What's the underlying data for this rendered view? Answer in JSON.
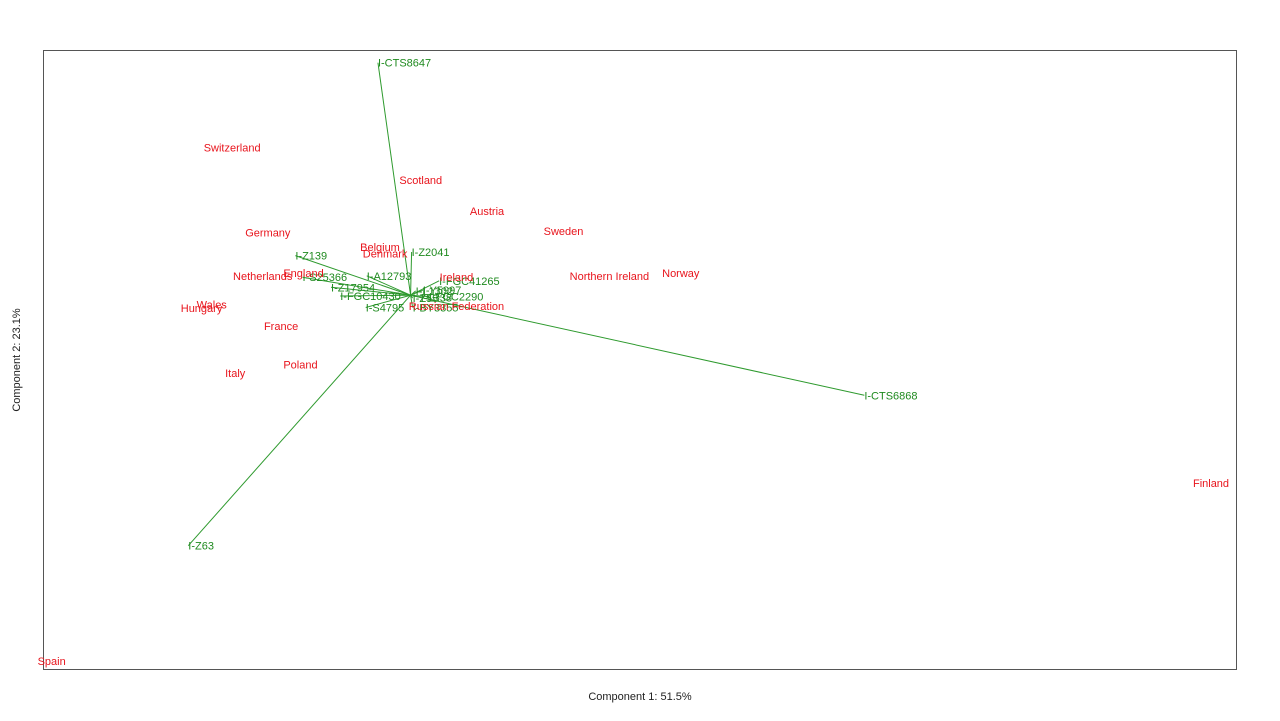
{
  "chart_data": {
    "type": "scatter",
    "subtype": "biplot",
    "title": "",
    "xlabel": "Component 1: 51.5%",
    "ylabel": "Component 2: 23.1%",
    "xlim": [
      -0.36,
      0.81
    ],
    "ylim": [
      -0.52,
      0.34
    ],
    "grid": false,
    "legend": "none",
    "colors": {
      "points": "#e8141c",
      "loadings": "#1f8a1f",
      "vectors": "#2e9a2e"
    },
    "points": [
      {
        "label": "Switzerland",
        "x": -0.175,
        "y": 0.205
      },
      {
        "label": "Scotland",
        "x": 0.01,
        "y": 0.16
      },
      {
        "label": "Austria",
        "x": 0.075,
        "y": 0.117
      },
      {
        "label": "Sweden",
        "x": 0.15,
        "y": 0.089
      },
      {
        "label": "Germany",
        "x": -0.14,
        "y": 0.087
      },
      {
        "label": "Belgium",
        "x": -0.03,
        "y": 0.067
      },
      {
        "label": "Denmark",
        "x": -0.025,
        "y": 0.058
      },
      {
        "label": "England",
        "x": -0.105,
        "y": 0.031
      },
      {
        "label": "Netherlands",
        "x": -0.145,
        "y": 0.027
      },
      {
        "label": "Ireland",
        "x": 0.045,
        "y": 0.025
      },
      {
        "label": "Northern Ireland",
        "x": 0.195,
        "y": 0.027
      },
      {
        "label": "Norway",
        "x": 0.265,
        "y": 0.031
      },
      {
        "label": "Wales",
        "x": -0.195,
        "y": -0.013
      },
      {
        "label": "Hungary",
        "x": -0.205,
        "y": -0.018
      },
      {
        "label": "Russian Federation",
        "x": 0.045,
        "y": -0.015
      },
      {
        "label": "France",
        "x": -0.127,
        "y": -0.043
      },
      {
        "label": "Poland",
        "x": -0.108,
        "y": -0.096
      },
      {
        "label": "Italy",
        "x": -0.172,
        "y": -0.108
      },
      {
        "label": "Finland",
        "x": 0.785,
        "y": -0.261
      },
      {
        "label": "Spain",
        "x": -0.352,
        "y": -0.508
      }
    ],
    "loadings": [
      {
        "label": "I-CTS8647",
        "x": -0.032,
        "y": 0.323
      },
      {
        "label": "I-CTS6868",
        "x": 0.445,
        "y": -0.139
      },
      {
        "label": "I-Z63",
        "x": -0.218,
        "y": -0.348
      },
      {
        "label": "I-Z139",
        "x": -0.113,
        "y": 0.055
      },
      {
        "label": "I-Z2041",
        "x": 0.001,
        "y": 0.06
      },
      {
        "label": "I-FGC41265",
        "x": 0.028,
        "y": 0.02
      },
      {
        "label": "I-A12793",
        "x": -0.043,
        "y": 0.027
      },
      {
        "label": "I-S25366",
        "x": -0.106,
        "y": 0.025
      },
      {
        "label": "I-Z17954",
        "x": -0.078,
        "y": 0.011
      },
      {
        "label": "I-FGC10430",
        "x": -0.069,
        "y": -0.001
      },
      {
        "label": "I-S4795",
        "x": -0.044,
        "y": -0.017
      },
      {
        "label": "I-BY3355",
        "x": 0.002,
        "y": -0.017
      },
      {
        "label": "I-L1302",
        "x": 0.005,
        "y": 0.006
      },
      {
        "label": "I-Y5997",
        "x": 0.012,
        "y": 0.007
      },
      {
        "label": "I-FGC2290",
        "x": 0.018,
        "y": -0.002
      },
      {
        "label": "I-Z58",
        "x": 0.002,
        "y": -0.004
      },
      {
        "label": "I-L338",
        "x": 0.01,
        "y": -0.003
      }
    ]
  }
}
